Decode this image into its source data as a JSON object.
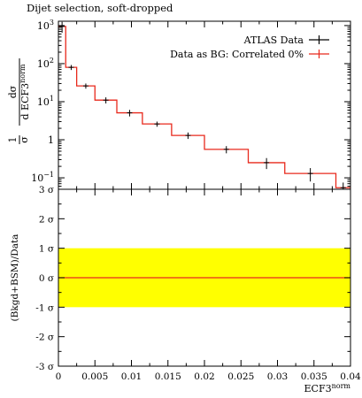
{
  "title": "Dijet selection, soft-dropped",
  "chart_data": [
    {
      "type": "line",
      "panel": "main",
      "ylabel": "1/σ dσ/d ECF3^norm",
      "ylabel_parts": {
        "prefix": "1",
        "sigma": "σ",
        "num": "dσ",
        "den": "d ECF3",
        "den_sup": "norm"
      },
      "yscale": "log",
      "ylim": [
        0.05,
        1300
      ],
      "xlim": [
        0,
        0.04
      ],
      "ytick_labels": [
        {
          "base": "10",
          "exp": "3"
        },
        {
          "base": "10",
          "exp": "2"
        },
        {
          "base": "10",
          "exp": "1"
        },
        {
          "base": "1",
          "exp": ""
        },
        {
          "base": "10",
          "exp": "−1"
        }
      ],
      "ytick_values": [
        1000,
        100,
        10,
        1,
        0.1
      ],
      "legend_position": "top-right",
      "bin_edges": [
        0,
        0.001,
        0.0025,
        0.005,
        0.008,
        0.0115,
        0.0155,
        0.02,
        0.026,
        0.031,
        0.038,
        0.04
      ],
      "series": [
        {
          "name": "ATLAS Data",
          "style": "points",
          "color": "#000000",
          "values": [
            950,
            80,
            26,
            11,
            5.1,
            2.6,
            1.3,
            0.56,
            0.25,
            0.13,
            0.055
          ],
          "errors": [
            300,
            12,
            4,
            2,
            1,
            0.4,
            0.25,
            0.12,
            0.08,
            0.05,
            0.02
          ]
        },
        {
          "name": "Data as BG: Correlated 0%",
          "style": "step",
          "color": "#e8291c",
          "values": [
            950,
            80,
            26,
            11,
            5.1,
            2.6,
            1.3,
            0.56,
            0.25,
            0.13,
            0.055
          ]
        }
      ]
    },
    {
      "type": "area",
      "panel": "ratio",
      "ylabel": "(Bkgd+BSM)/Data",
      "xlabel": "ECF3",
      "xlabel_sup": "norm",
      "ylim": [
        -3,
        3
      ],
      "xlim": [
        0,
        0.04
      ],
      "ytick_values": [
        3,
        2,
        1,
        0,
        -1,
        -2,
        -3
      ],
      "ytick_labels": [
        "3 σ",
        "2 σ",
        "1 σ",
        "0 σ",
        "-1 σ",
        "-2 σ",
        "-3 σ"
      ],
      "xtick_values": [
        0,
        0.005,
        0.01,
        0.015,
        0.02,
        0.025,
        0.03,
        0.035,
        0.04
      ],
      "xtick_labels": [
        "0",
        "0.005",
        "0.01",
        "0.015",
        "0.02",
        "0.025",
        "0.03",
        "0.035",
        "0.04"
      ],
      "band": {
        "low": -1,
        "high": 1,
        "color": "#ffff00"
      },
      "line": {
        "value": 0,
        "color": "#e8291c"
      }
    }
  ]
}
